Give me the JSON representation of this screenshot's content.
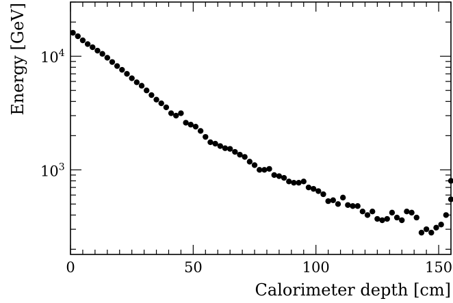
{
  "chart_data": {
    "type": "scatter",
    "xlabel": "Calorimeter depth [cm]",
    "ylabel": "Energy [GeV]",
    "xlim": [
      0,
      155
    ],
    "ylim": [
      180,
      30000
    ],
    "y_scale": "log",
    "grid": false,
    "marker_color": "#000000",
    "x_ticks": [
      {
        "value": 0,
        "label": "0"
      },
      {
        "value": 50,
        "label": "50"
      },
      {
        "value": 100,
        "label": "100"
      },
      {
        "value": 150,
        "label": "150"
      }
    ],
    "y_ticks": [
      {
        "value": 1000,
        "base": "10",
        "exp": "3"
      },
      {
        "value": 10000,
        "base": "10",
        "exp": "4"
      }
    ],
    "series": [
      {
        "points": [
          [
            1,
            16100
          ],
          [
            3,
            15000
          ],
          [
            5,
            13800
          ],
          [
            7,
            12800
          ],
          [
            9,
            12000
          ],
          [
            11,
            11200
          ],
          [
            13,
            10500
          ],
          [
            15,
            9700
          ],
          [
            17,
            8900
          ],
          [
            19,
            8200
          ],
          [
            21,
            7600
          ],
          [
            23,
            7000
          ],
          [
            25,
            6400
          ],
          [
            27,
            5900
          ],
          [
            29,
            5500
          ],
          [
            31,
            5000
          ],
          [
            33,
            4550
          ],
          [
            35,
            4150
          ],
          [
            37,
            3850
          ],
          [
            39,
            3550
          ],
          [
            41,
            3150
          ],
          [
            43,
            3000
          ],
          [
            45,
            3150
          ],
          [
            47,
            2600
          ],
          [
            49,
            2500
          ],
          [
            51,
            2400
          ],
          [
            53,
            2200
          ],
          [
            55,
            1950
          ],
          [
            57,
            1750
          ],
          [
            59,
            1700
          ],
          [
            61,
            1620
          ],
          [
            63,
            1550
          ],
          [
            65,
            1530
          ],
          [
            67,
            1440
          ],
          [
            69,
            1360
          ],
          [
            71,
            1300
          ],
          [
            73,
            1180
          ],
          [
            75,
            1100
          ],
          [
            77,
            1000
          ],
          [
            79,
            1000
          ],
          [
            81,
            1020
          ],
          [
            83,
            900
          ],
          [
            85,
            880
          ],
          [
            87,
            850
          ],
          [
            89,
            790
          ],
          [
            91,
            770
          ],
          [
            93,
            770
          ],
          [
            95,
            790
          ],
          [
            97,
            700
          ],
          [
            99,
            680
          ],
          [
            101,
            650
          ],
          [
            103,
            610
          ],
          [
            105,
            530
          ],
          [
            107,
            540
          ],
          [
            109,
            500
          ],
          [
            111,
            570
          ],
          [
            113,
            490
          ],
          [
            115,
            480
          ],
          [
            117,
            480
          ],
          [
            119,
            430
          ],
          [
            121,
            400
          ],
          [
            123,
            430
          ],
          [
            125,
            370
          ],
          [
            127,
            360
          ],
          [
            129,
            370
          ],
          [
            131,
            420
          ],
          [
            133,
            380
          ],
          [
            135,
            360
          ],
          [
            137,
            430
          ],
          [
            139,
            420
          ],
          [
            141,
            380
          ],
          [
            143,
            280
          ],
          [
            145,
            300
          ],
          [
            147,
            280
          ],
          [
            149,
            310
          ],
          [
            151,
            330
          ],
          [
            153,
            400
          ],
          [
            155,
            550
          ],
          [
            156,
            800
          ]
        ]
      }
    ]
  }
}
